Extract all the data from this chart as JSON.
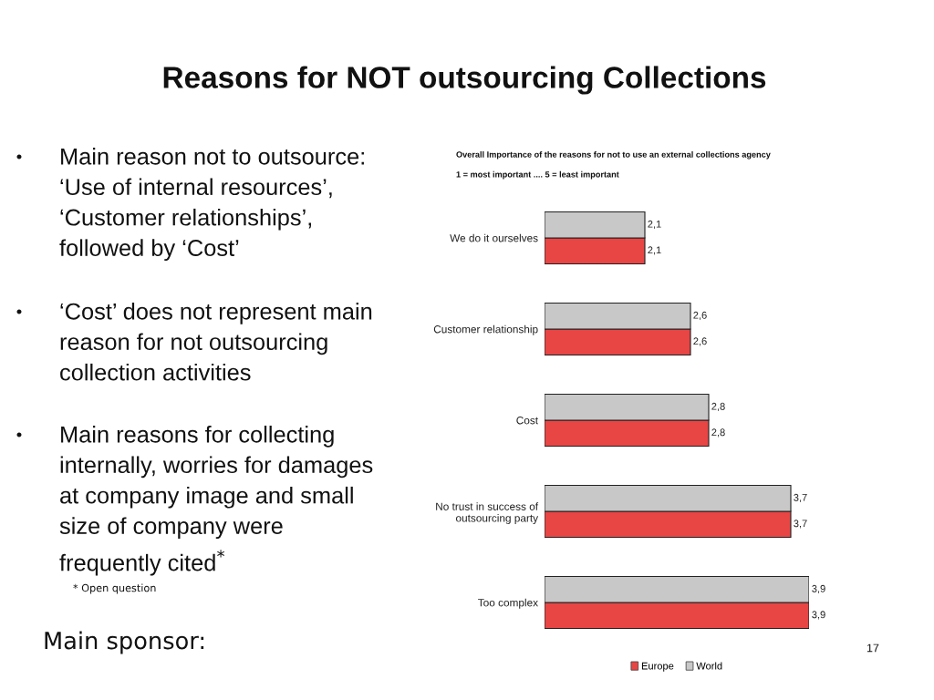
{
  "chart_data": {
    "type": "bar",
    "orientation": "horizontal",
    "title": "Reasons for NOT outsourcing Collections",
    "subtitle": "Overall Importance of the reasons for not to use an external collections agency\n1 = most important .... 5 = least important",
    "categories": [
      "We do it ourselves",
      "Customer relationship",
      "Cost",
      "No trust in success of\noutsourcing party",
      "Too complex"
    ],
    "series": [
      {
        "name": "Europe",
        "color": "#e84545",
        "values": [
          2.1,
          2.6,
          2.8,
          3.7,
          3.9
        ],
        "value_labels": [
          "2,1",
          "2,6",
          "2,8",
          "3,7",
          "3,9"
        ]
      },
      {
        "name": "World",
        "color": "#c8c8c8",
        "values": [
          2.1,
          2.6,
          2.8,
          3.7,
          3.9
        ],
        "value_labels": [
          "2,1",
          "2,6",
          "2,8",
          "3,7",
          "3,9"
        ]
      }
    ],
    "xlim": [
      1,
      3.9
    ],
    "tick_labels": "y",
    "legend": "bottom",
    "annotations": [
      "Main reason not to outsource:\n‘Use of internal resources’,\n‘Customer relationships’,\nfollowed by ‘Cost’",
      "‘Cost’ does not represent main\nreason for not outsourcing\ncollection activities",
      "Main reasons for collecting\ninternally, worries for damages\nat company image and small\nsize of company were\nfrequently cited$^{*}$",
      "* Open question",
      "Main sponsor:",
      "17"
    ]
  }
}
